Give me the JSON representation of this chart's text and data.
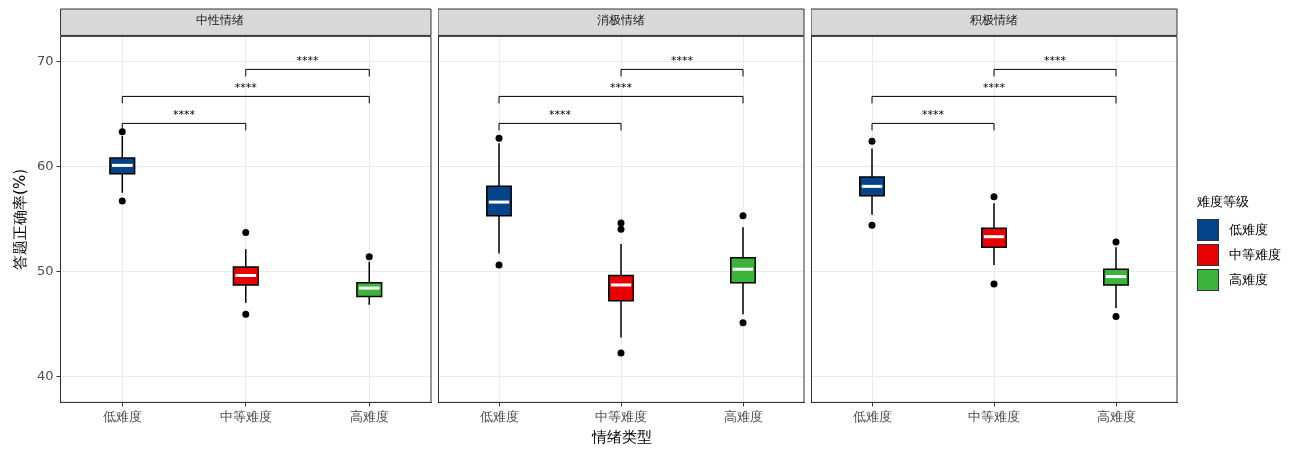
{
  "chart_data": [
    {
      "type": "box",
      "title": "中性情绪",
      "ylabel": "答题正确率(%)",
      "categories": [
        "低难度",
        "中等难度",
        "高难度"
      ],
      "ylim": [
        37.5,
        72.4
      ],
      "yticks": [
        40,
        50,
        60,
        70
      ],
      "grid": true,
      "annotations": [
        "****",
        "****",
        "****"
      ],
      "series": [
        {
          "color": "#034488",
          "boxes": [
            {
              "low": 57.5,
              "q1": 59.3,
              "median": 60.1,
              "q3": 60.8,
              "high": 62.9,
              "outliers": [
                63.3,
                56.7
              ]
            },
            null,
            null
          ]
        },
        {
          "color": "#e80000",
          "boxes": [
            null,
            {
              "low": 47.0,
              "q1": 48.7,
              "median": 49.6,
              "q3": 50.4,
              "high": 52.1,
              "outliers": [
                53.7,
                45.9
              ]
            },
            null
          ]
        },
        {
          "color": "#3cb43c",
          "boxes": [
            null,
            null,
            {
              "low": 46.8,
              "q1": 47.6,
              "median": 48.4,
              "q3": 48.9,
              "high": 50.9,
              "outliers": [
                51.4
              ]
            }
          ]
        }
      ]
    },
    {
      "type": "box",
      "title": "消极情绪",
      "xlabel": "情绪类型",
      "categories": [
        "低难度",
        "中等难度",
        "高难度"
      ],
      "ylim": [
        37.5,
        72.4
      ],
      "yticks": [
        40,
        50,
        60,
        70
      ],
      "grid": true,
      "tick_labels": "x",
      "annotations": [
        "****",
        "****",
        "****"
      ],
      "series": [
        {
          "color": "#034488",
          "boxes": [
            {
              "low": 51.7,
              "q1": 55.3,
              "median": 56.6,
              "q3": 58.1,
              "high": 62.2,
              "outliers": [
                62.7,
                50.6
              ]
            },
            null,
            null
          ]
        },
        {
          "color": "#e80000",
          "boxes": [
            null,
            {
              "low": 43.7,
              "q1": 47.2,
              "median": 48.7,
              "q3": 49.6,
              "high": 52.6,
              "outliers": [
                54.6,
                54.0,
                42.2
              ]
            },
            null
          ]
        },
        {
          "color": "#3cb43c",
          "boxes": [
            null,
            null,
            {
              "low": 45.9,
              "q1": 48.9,
              "median": 50.2,
              "q3": 51.3,
              "high": 54.2,
              "outliers": [
                55.3,
                45.1
              ]
            }
          ]
        }
      ]
    },
    {
      "type": "box",
      "title": "积极情绪",
      "legend_title": "难度等级",
      "legend": "right",
      "categories": [
        "低难度",
        "中等难度",
        "高难度"
      ],
      "ylim": [
        37.5,
        72.4
      ],
      "yticks": [
        40,
        50,
        60,
        70
      ],
      "grid": true,
      "tick_labels": "x",
      "annotations": [
        "****",
        "****",
        "****"
      ],
      "series": [
        {
          "name": "低难度",
          "color": "#034488",
          "boxes": [
            {
              "low": 55.4,
              "q1": 57.2,
              "median": 58.1,
              "q3": 59.0,
              "high": 61.7,
              "outliers": [
                62.4,
                54.4
              ]
            },
            null,
            null
          ]
        },
        {
          "name": "中等难度",
          "color": "#e80000",
          "boxes": [
            null,
            {
              "low": 50.6,
              "q1": 52.3,
              "median": 53.3,
              "q3": 54.1,
              "high": 56.5,
              "outliers": [
                57.1,
                48.8
              ]
            },
            null
          ]
        },
        {
          "name": "高难度",
          "color": "#3cb43c",
          "boxes": [
            null,
            null,
            {
              "low": 46.5,
              "q1": 48.7,
              "median": 49.5,
              "q3": 50.2,
              "high": 52.3,
              "outliers": [
                52.8,
                45.7
              ]
            }
          ]
        }
      ]
    }
  ]
}
